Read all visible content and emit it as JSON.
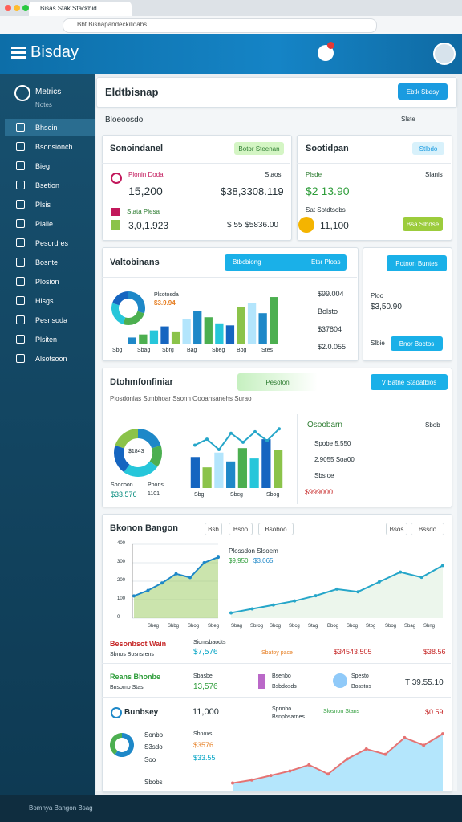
{
  "browser": {
    "tab": "Bisas Stak Stackbid",
    "url": "Bbt Bisnapandeckilidabs"
  },
  "app": {
    "logo": "Bisday"
  },
  "sidebar": {
    "title": "Metrics",
    "subtitle": "Notes",
    "items": [
      "Bhsein",
      "Bsonsionch",
      "Bieg",
      "Bsetion",
      "Plsis",
      "Plaile",
      "Pesordres",
      "Bosnte",
      "Plosion",
      "Hlsgs",
      "Pesnsoda",
      "Plsiten",
      "Alsotsoon"
    ]
  },
  "header": {
    "title": "Eldtbisnap",
    "button": "Ebtk Sbdsy",
    "filter": "Bloeoosdo",
    "check": "Slste"
  },
  "summary": {
    "left": {
      "title": "Sonoindanel",
      "tag": "Botor Steenan",
      "row1_label": "Plonin Doda",
      "row1_sub": "Staos",
      "value1": "15,200",
      "value2": "$38,3308.119",
      "row2_label": "Stata Plesa",
      "value3": "3,0,1.923",
      "value4": "$ 55 $5836.00"
    },
    "right": {
      "title": "Sootidpan",
      "tag": "Stlbdo",
      "label": "Plsde",
      "sub": "Slanis",
      "value1": "$2 13.90",
      "label2": "Sat Sotdtsobs",
      "value2": "11,100",
      "button": "Bsa Slbdse"
    }
  },
  "valuations": {
    "title": "Valtobinans",
    "button_left": "Btbcbiong",
    "button_right": "Etsr Ploas",
    "donut_title": "Plsotosda",
    "donut_label": "$3.9.94",
    "bar_labels": [
      "Sbg",
      "Sbag",
      "Sbrg",
      "Bag",
      "Sbeg",
      "Bbg",
      "Stes"
    ],
    "list": [
      "$99.004",
      "Bolsto",
      "$37804",
      "$2.0.055"
    ]
  },
  "mini": {
    "button": "Potnon Buntes",
    "label": "Ploo",
    "value": "$3,50.90",
    "label2": "Slbie",
    "button2": "Bnor Boctos"
  },
  "distribution": {
    "title": "Dtohmfonfiniar",
    "tag": "Pesoton",
    "button": "V Batne Stadatbios",
    "subtitle": "Plosdonlas  Stmbhoar  Ssonn Oooansanehs Surao",
    "donut_label": "$1843",
    "legend": [
      "Sbocoon",
      "Pbons",
      "$33.576",
      "1101"
    ],
    "bar_labels": [
      "Sbg",
      "Sbcg",
      "Sbog"
    ],
    "panel_title": "Osoobarn",
    "panel_tag": "Sbob",
    "panel_items": [
      "Spobe 5.550",
      "2.9055 Soa00",
      "Sbsioe"
    ],
    "panel_total": "$999000"
  },
  "trends": {
    "title": "Bkonon Bangon",
    "buttons": [
      "Bsb",
      "Bsoo",
      "Bsoboo",
      "Bsos",
      "Bssdo"
    ],
    "left_labels": [
      "Sbeg",
      "Sbbg",
      "Sbog",
      "Sbeg"
    ],
    "right_title": "Plossdon Slsoem",
    "right_v1": "$9,950",
    "right_v2": "$3.065",
    "right_labels": [
      "Sbag",
      "Sbrog",
      "Sbog",
      "Sbcg",
      "Stag",
      "Bbog",
      "Sbog",
      "Stbg",
      "Sbog",
      "Sbag",
      "Sbng"
    ],
    "stats": [
      "Besonbsot Wain",
      "Sbnos Bosnsrens",
      "Siomsbaodts",
      "$7,576",
      "Sbatoy pace",
      "$34543.505",
      "$38.56",
      "Reans Bhonbe",
      "Bnsomo Stas",
      "Sbasbe",
      "13,576",
      "Bsenbo",
      "Bsbdosds",
      "Spesto",
      "Bosstos",
      "T 39.55.10",
      "Bunbsey",
      "11,000",
      "Spnobo",
      "Bsnpbsarnes",
      "Slosnon Stans",
      "$0.59",
      "Sonbo",
      "S3sdo",
      "Soo",
      "Sbnoxs",
      "$3576",
      "$33.55",
      "Sbobs"
    ]
  },
  "footer": {
    "text": "Bomnya Bangon Bsag"
  },
  "charts": {
    "palette": [
      "#1e88c8",
      "#4caf50",
      "#26c6da",
      "#1565c0",
      "#8bc34a",
      "#b3e5fc",
      "#f4b400",
      "#e53935"
    ],
    "valuations": {
      "donut": [
        30,
        25,
        25,
        20
      ],
      "bars": [
        6,
        9,
        13,
        17,
        12,
        24,
        32,
        26,
        20,
        18,
        36,
        40,
        30,
        46
      ],
      "ylim": [
        0,
        50
      ]
    },
    "distribution": {
      "donut": [
        20,
        15,
        25,
        20,
        20
      ],
      "bars": [
        42,
        28,
        48,
        36,
        54,
        40,
        66,
        52
      ],
      "line": [
        58,
        66,
        52,
        74,
        62,
        76,
        64,
        80
      ],
      "ylim": [
        0,
        90
      ]
    },
    "trends": {
      "left": [
        120,
        150,
        190,
        240,
        220,
        300,
        330
      ],
      "ylim": [
        0,
        400
      ],
      "yticks": [
        0,
        100,
        200,
        300,
        400
      ],
      "right": [
        8,
        14,
        20,
        26,
        34,
        44,
        40,
        55,
        70,
        62,
        80
      ],
      "right_ylim": [
        0,
        100
      ]
    },
    "bottom": {
      "donut": [
        60,
        40
      ],
      "area": [
        10,
        14,
        20,
        26,
        34,
        22,
        42,
        55,
        48,
        70,
        60,
        75
      ],
      "ylim": [
        0,
        90
      ]
    }
  }
}
